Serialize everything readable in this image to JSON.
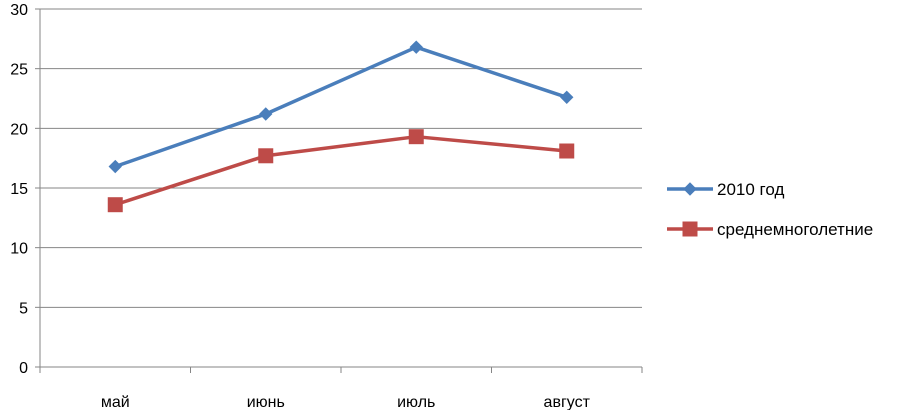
{
  "chart_data": {
    "type": "line",
    "title": "",
    "xlabel": "",
    "ylabel": "",
    "categories": [
      "май",
      "июнь",
      "июль",
      "август"
    ],
    "ylim": [
      0,
      30
    ],
    "yticks": [
      0,
      5,
      10,
      15,
      20,
      25,
      30
    ],
    "grid": true,
    "legend_position": "right",
    "series": [
      {
        "name": "2010 год",
        "values": [
          16.8,
          21.2,
          26.8,
          22.6
        ],
        "color": "#4A7EBB",
        "marker": "diamond"
      },
      {
        "name": "среднемноголетние",
        "values": [
          13.6,
          17.7,
          19.3,
          18.1
        ],
        "color": "#BE4B48",
        "marker": "square"
      }
    ]
  }
}
